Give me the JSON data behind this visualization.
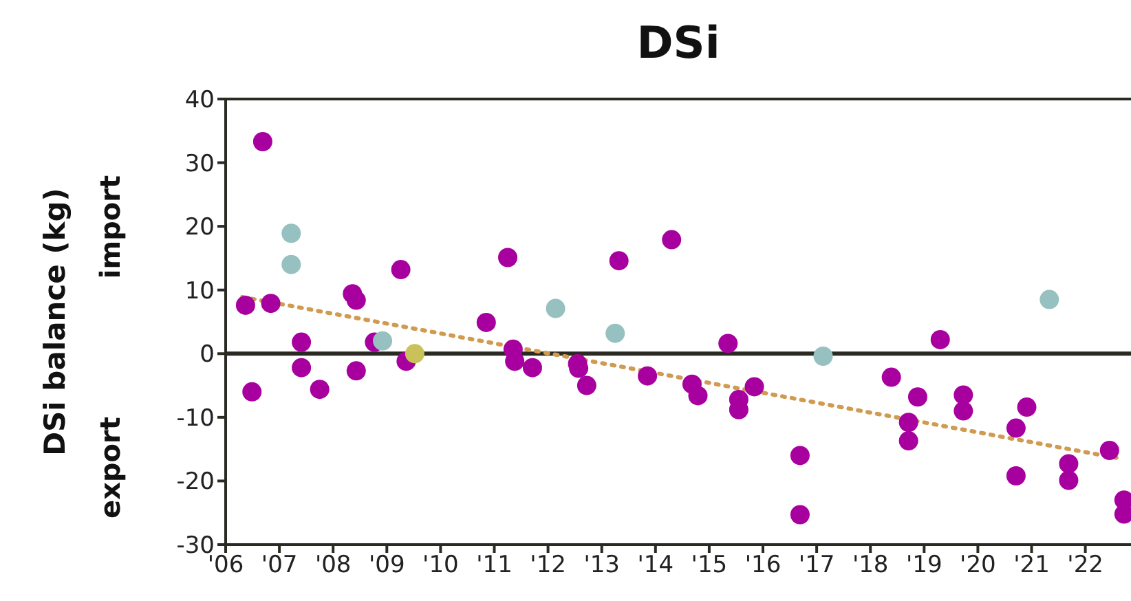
{
  "chart_data": {
    "type": "scatter",
    "title": "DSi",
    "ylabel": "DSi balance (kg)",
    "annotations": [
      "import",
      "export"
    ],
    "marker": "circle",
    "xlim": [
      2006,
      2022.85
    ],
    "ylim": [
      -30,
      40
    ],
    "yticks": [
      -30,
      -20,
      -10,
      0,
      10,
      20,
      30,
      40
    ],
    "xticks": [
      {
        "value": 2006,
        "label": "'06"
      },
      {
        "value": 2007,
        "label": "'07"
      },
      {
        "value": 2008,
        "label": "'08"
      },
      {
        "value": 2009,
        "label": "'09"
      },
      {
        "value": 2010,
        "label": "'10"
      },
      {
        "value": 2011,
        "label": "'11"
      },
      {
        "value": 2012,
        "label": "'12"
      },
      {
        "value": 2013,
        "label": "'13"
      },
      {
        "value": 2014,
        "label": "'14"
      },
      {
        "value": 2015,
        "label": "'15"
      },
      {
        "value": 2016,
        "label": "'16"
      },
      {
        "value": 2017,
        "label": "'17"
      },
      {
        "value": 2018,
        "label": "'18"
      },
      {
        "value": 2019,
        "label": "'19"
      },
      {
        "value": 2020,
        "label": "'20"
      },
      {
        "value": 2021,
        "label": "'21"
      },
      {
        "value": 2022,
        "label": "'22"
      }
    ],
    "ref_lines": [
      {
        "axis": "y",
        "value": 0,
        "color": "#2b2a22",
        "line_style": "solid"
      }
    ],
    "series": [
      {
        "color": "#a8009f",
        "x": [
          2006.37,
          2006.69,
          2006.84,
          2006.49,
          2007.41,
          2007.41,
          2007.75,
          2008.36,
          2008.43,
          2008.43,
          2008.77,
          2009.26,
          2009.36,
          2010.85,
          2011.25,
          2011.35,
          2011.38,
          2011.71,
          2012.55,
          2012.57,
          2012.72,
          2013.32,
          2013.85,
          2014.3,
          2014.68,
          2014.79,
          2015.35,
          2015.55,
          2015.55,
          2015.84,
          2016.69,
          2016.69,
          2018.39,
          2018.71,
          2018.71,
          2018.88,
          2019.3,
          2019.73,
          2019.73,
          2020.71,
          2020.71,
          2020.91,
          2021.69,
          2021.69,
          2022.45,
          2022.72,
          2022.72
        ],
        "values": [
          7.6,
          33.3,
          7.9,
          -6.0,
          1.8,
          -2.2,
          -5.6,
          9.4,
          8.4,
          -2.7,
          1.8,
          13.2,
          -1.2,
          4.9,
          15.1,
          0.7,
          -1.2,
          -2.2,
          -1.6,
          -2.3,
          -5.0,
          14.6,
          -3.5,
          17.9,
          -4.8,
          -6.6,
          1.6,
          -7.2,
          -8.8,
          -5.2,
          -16.0,
          -25.3,
          -3.7,
          -10.8,
          -13.7,
          -6.8,
          2.2,
          -6.5,
          -9.0,
          -11.7,
          -19.2,
          -8.4,
          -17.3,
          -19.9,
          -15.2,
          -23.0,
          -25.2
        ]
      },
      {
        "color": "#96c1c0",
        "x": [
          2007.22,
          2007.22,
          2008.92,
          2012.14,
          2013.25,
          2017.12,
          2021.33
        ],
        "values": [
          18.9,
          14.0,
          2.0,
          7.1,
          3.2,
          -0.4,
          8.5
        ]
      },
      {
        "color": "#c9c25a",
        "x": [
          2009.52
        ],
        "values": [
          0
        ]
      },
      {
        "type": "line",
        "color": "#d09a50",
        "line_style": "dotted",
        "marker": "none",
        "x": [
          2006.31,
          2022.6
        ],
        "values": [
          8.9,
          -16.4
        ]
      }
    ]
  }
}
